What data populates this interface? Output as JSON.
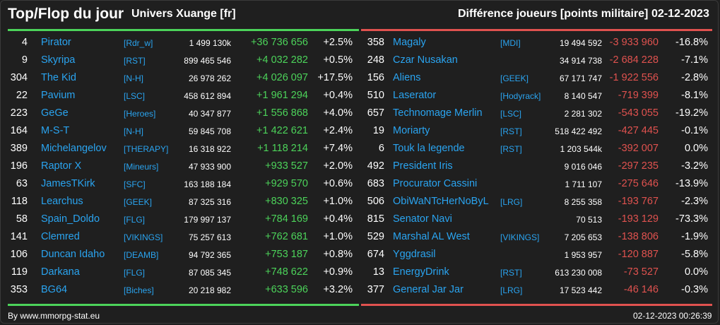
{
  "header": {
    "title": "Top/Flop du jour",
    "server": "Univers Xuange [fr]",
    "metric": "Différence joueurs [points militaire]",
    "date": "02-12-2023"
  },
  "colors": {
    "accent_top": "#4cd35a",
    "accent_flop": "#e0524f",
    "player_link": "#2aa4f0",
    "background": "#1f1f1f"
  },
  "top": [
    {
      "rank": "4",
      "name": "Pirator",
      "alliance": "[Rdr_w]",
      "total": "1 499 130k",
      "diff": "+36 736 656",
      "pct": "+2.5%"
    },
    {
      "rank": "9",
      "name": "Skyripa",
      "alliance": "[RST]",
      "total": "899 465 546",
      "diff": "+4 032 282",
      "pct": "+0.5%"
    },
    {
      "rank": "304",
      "name": "The Kid",
      "alliance": "[N-H]",
      "total": "26 978 262",
      "diff": "+4 026 097",
      "pct": "+17.5%"
    },
    {
      "rank": "22",
      "name": "Pavium",
      "alliance": "[LSC]",
      "total": "458 612 894",
      "diff": "+1 961 294",
      "pct": "+0.4%"
    },
    {
      "rank": "223",
      "name": "GeGe",
      "alliance": "[Heroes]",
      "total": "40 347 877",
      "diff": "+1 556 868",
      "pct": "+4.0%"
    },
    {
      "rank": "164",
      "name": "M-S-T",
      "alliance": "[N-H]",
      "total": "59 845 708",
      "diff": "+1 422 621",
      "pct": "+2.4%"
    },
    {
      "rank": "389",
      "name": "Michelangelov",
      "alliance": "[THERAPY]",
      "total": "16 318 922",
      "diff": "+1 118 214",
      "pct": "+7.4%"
    },
    {
      "rank": "196",
      "name": "Raptor X",
      "alliance": "[Mineurs]",
      "total": "47 933 900",
      "diff": "+933 527",
      "pct": "+2.0%"
    },
    {
      "rank": "63",
      "name": "JamesTKirk",
      "alliance": "[SFC]",
      "total": "163 188 184",
      "diff": "+929 570",
      "pct": "+0.6%"
    },
    {
      "rank": "118",
      "name": "Learchus",
      "alliance": "[GEEK]",
      "total": "87 325 316",
      "diff": "+830 325",
      "pct": "+1.0%"
    },
    {
      "rank": "58",
      "name": "Spain_Doldo",
      "alliance": "[FLG]",
      "total": "179 997 137",
      "diff": "+784 169",
      "pct": "+0.4%"
    },
    {
      "rank": "141",
      "name": "Clemred",
      "alliance": "[VIKINGS]",
      "total": "75 257 613",
      "diff": "+762 681",
      "pct": "+1.0%"
    },
    {
      "rank": "106",
      "name": "Duncan Idaho",
      "alliance": "[DEAMB]",
      "total": "94 792 365",
      "diff": "+753 187",
      "pct": "+0.8%"
    },
    {
      "rank": "119",
      "name": "Darkana",
      "alliance": "[FLG]",
      "total": "87 085 345",
      "diff": "+748 622",
      "pct": "+0.9%"
    },
    {
      "rank": "353",
      "name": "BG64",
      "alliance": "[Biches]",
      "total": "20 218 982",
      "diff": "+633 596",
      "pct": "+3.2%"
    }
  ],
  "flop": [
    {
      "rank": "358",
      "name": "Magaly",
      "alliance": "[MDI]",
      "total": "19 494 592",
      "diff": "-3 933 960",
      "pct": "-16.8%"
    },
    {
      "rank": "248",
      "name": "Czar Nusakan",
      "alliance": "",
      "total": "34 914 738",
      "diff": "-2 684 228",
      "pct": "-7.1%"
    },
    {
      "rank": "156",
      "name": "Aliens",
      "alliance": "[GEEK]",
      "total": "67 171 747",
      "diff": "-1 922 556",
      "pct": "-2.8%"
    },
    {
      "rank": "510",
      "name": "Laserator",
      "alliance": "[Hodyrack]",
      "total": "8 140 547",
      "diff": "-719 399",
      "pct": "-8.1%"
    },
    {
      "rank": "657",
      "name": "Technomage Merlin",
      "alliance": "[LSC]",
      "total": "2 281 302",
      "diff": "-543 055",
      "pct": "-19.2%"
    },
    {
      "rank": "19",
      "name": "Moriarty",
      "alliance": "[RST]",
      "total": "518 422 492",
      "diff": "-427 445",
      "pct": "-0.1%"
    },
    {
      "rank": "6",
      "name": "Touk la legende",
      "alliance": "[RST]",
      "total": "1 203 544k",
      "diff": "-392 007",
      "pct": "0.0%"
    },
    {
      "rank": "492",
      "name": "President Iris",
      "alliance": "",
      "total": "9 016 046",
      "diff": "-297 235",
      "pct": "-3.2%"
    },
    {
      "rank": "683",
      "name": "Procurator Cassini",
      "alliance": "",
      "total": "1 711 107",
      "diff": "-275 646",
      "pct": "-13.9%"
    },
    {
      "rank": "506",
      "name": "ObiWaNTcHerNoByL",
      "alliance": "[LRG]",
      "total": "8 255 358",
      "diff": "-193 767",
      "pct": "-2.3%"
    },
    {
      "rank": "815",
      "name": "Senator Navi",
      "alliance": "",
      "total": "70 513",
      "diff": "-193 129",
      "pct": "-73.3%"
    },
    {
      "rank": "529",
      "name": "Marshal AL West",
      "alliance": "[VIKINGS]",
      "total": "7 205 653",
      "diff": "-138 806",
      "pct": "-1.9%"
    },
    {
      "rank": "674",
      "name": "Yggdrasil",
      "alliance": "",
      "total": "1 953 957",
      "diff": "-120 887",
      "pct": "-5.8%"
    },
    {
      "rank": "13",
      "name": "EnergyDrink",
      "alliance": "[RST]",
      "total": "613 230 008",
      "diff": "-73 527",
      "pct": "0.0%"
    },
    {
      "rank": "377",
      "name": "General Jar Jar",
      "alliance": "[LRG]",
      "total": "17 523 442",
      "diff": "-46 146",
      "pct": "-0.3%"
    }
  ],
  "footer": {
    "credit": "By www.mmorpg-stat.eu",
    "timestamp": "02-12-2023 00:26:39"
  }
}
